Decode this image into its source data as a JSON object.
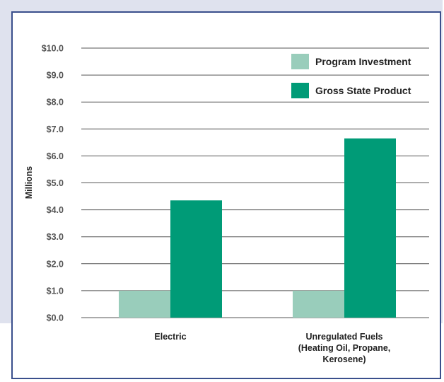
{
  "chart_data": {
    "type": "bar",
    "title": "",
    "xlabel": "",
    "ylabel": "Millions",
    "ylim": [
      0,
      10
    ],
    "y_ticks": [
      "$0.0",
      "$1.0",
      "$2.0",
      "$3.0",
      "$4.0",
      "$5.0",
      "$6.0",
      "$7.0",
      "$8.0",
      "$9.0",
      "$10.0"
    ],
    "categories": [
      [
        "Electric"
      ],
      [
        "Unregulated Fuels",
        "(Heating Oil, Propane,",
        "Kerosene)"
      ]
    ],
    "series": [
      {
        "name": "Program Investment",
        "values": [
          1.0,
          1.0
        ],
        "color": "#99cdbb"
      },
      {
        "name": "Gross State Product",
        "values": [
          4.35,
          6.65
        ],
        "color": "#009b77"
      }
    ],
    "grid": true,
    "legend_position": "top-right",
    "gridline_color": "#555555",
    "frame_color": "#3a4f8c",
    "panel_color": "#dfe2ee"
  }
}
